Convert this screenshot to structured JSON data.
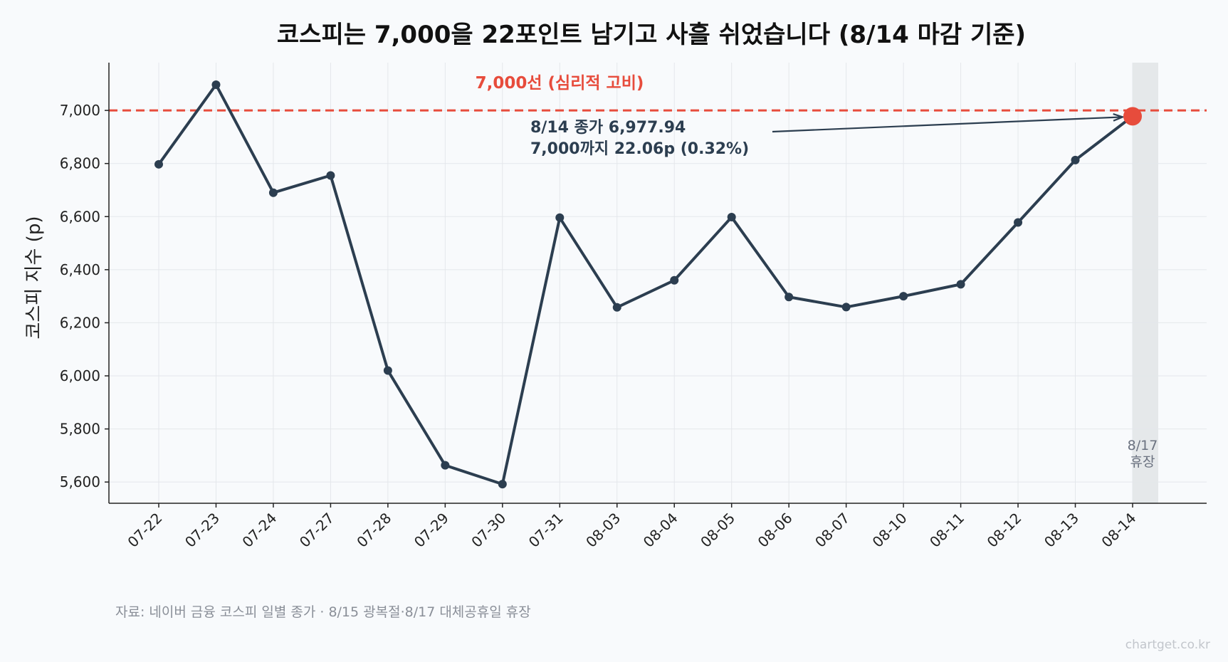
{
  "chart_data": {
    "type": "line",
    "title": "코스피는 7,000을 22포인트 남기고 사흘 쉬었습니다 (8/14 마감 기준)",
    "ylabel": "코스피 지수 (p)",
    "xlabel": "",
    "ylim": [
      5520,
      7180
    ],
    "yticks": [
      5600,
      5800,
      6000,
      6200,
      6400,
      6600,
      6800,
      7000
    ],
    "ytick_labels": [
      "5,600",
      "5,800",
      "6,000",
      "6,200",
      "6,400",
      "6,600",
      "6,800",
      "7,000"
    ],
    "grid": true,
    "categories": [
      "07-22",
      "07-23",
      "07-24",
      "07-27",
      "07-28",
      "07-29",
      "07-30",
      "07-31",
      "08-03",
      "08-04",
      "08-05",
      "08-06",
      "08-07",
      "08-10",
      "08-11",
      "08-12",
      "08-13",
      "08-14"
    ],
    "series": [
      {
        "values": [
          6797,
          7097,
          6690,
          6755,
          6020,
          5663,
          5592,
          6596,
          6258,
          6360,
          6598,
          6297,
          6259,
          6300,
          6345,
          6578,
          6813,
          6977.94
        ],
        "color": "#2c3e50"
      }
    ],
    "reference_line": {
      "value": 7000,
      "label": "7,000선 (심리적 고비)",
      "color": "#e74c3c"
    },
    "annotation": {
      "line1": "8/14 종가 6,977.94",
      "line2": "7,000까지 22.06p (0.32%)",
      "target_index": 17,
      "highlight_color": "#e74c3c"
    },
    "holiday_label": {
      "line1": "8/17",
      "line2": "휴장"
    },
    "source": "자료: 네이버 금융 코스피 일별 종가 · 8/15 광복절·8/17 대체공휴일 휴장",
    "brand": "chartget.co.kr"
  }
}
